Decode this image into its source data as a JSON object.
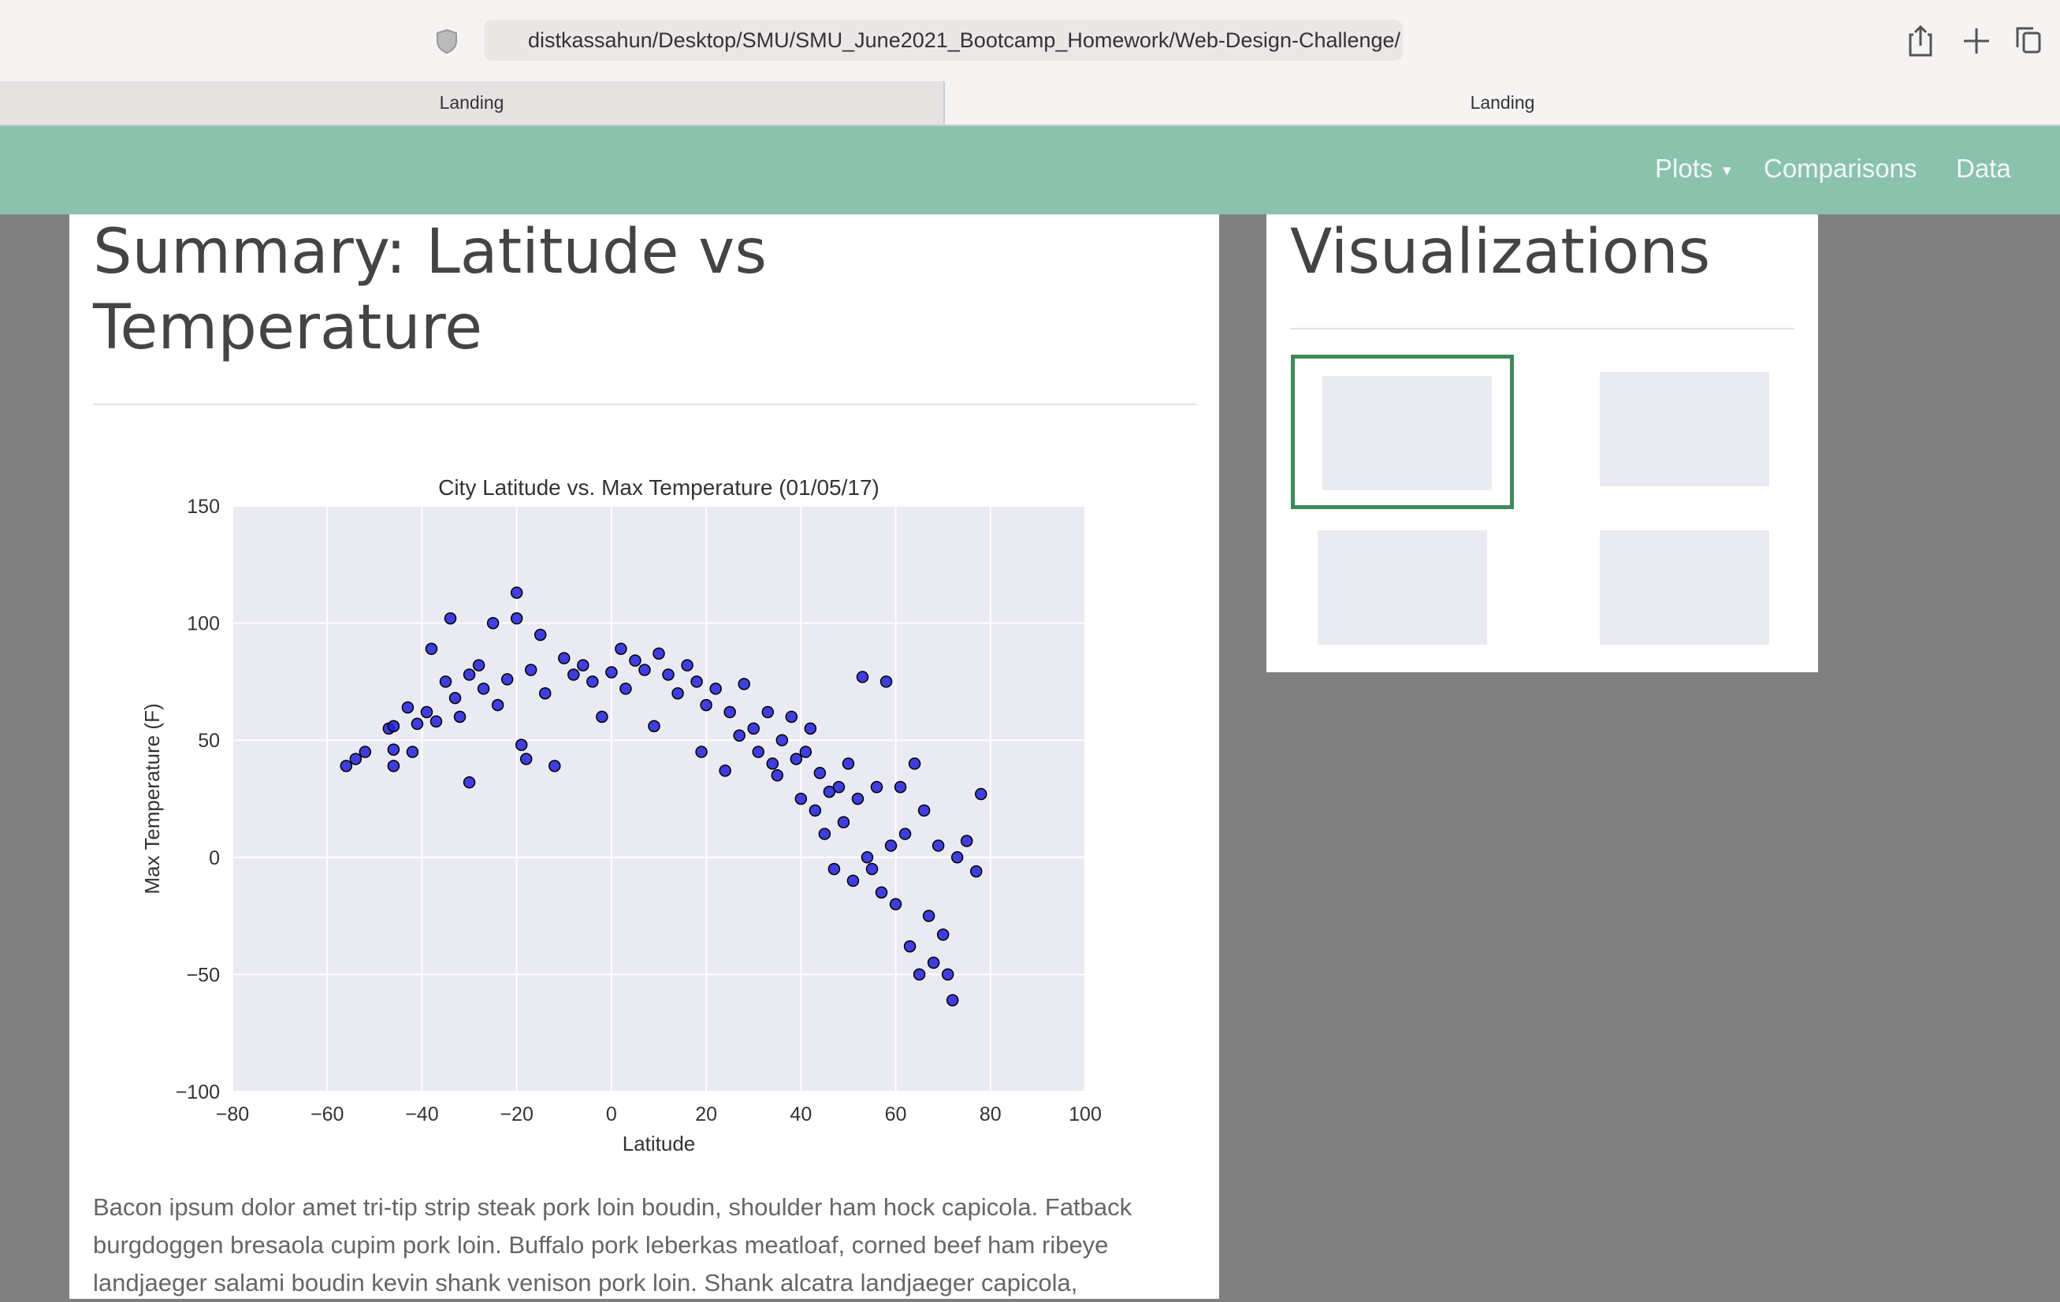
{
  "browser": {
    "url": "distkassahun/Desktop/SMU/SMU_June2021_Bootcamp_Homework/Web-Design-Challenge/",
    "tabs": [
      "Landing",
      "Landing"
    ]
  },
  "nav": {
    "items": [
      "Plots",
      "Comparisons",
      "Data"
    ]
  },
  "summary": {
    "title": "Summary: Latitude vs Temperature",
    "chart": {
      "type": "scatter",
      "title": "City Latitude vs. Max Temperature (01/05/17)",
      "x_label": "Latitude",
      "y_label": "Max Temperature (F)",
      "color": "#2020d8",
      "grid": true,
      "xlim": [
        -80,
        100
      ],
      "ylim": [
        -100,
        150
      ],
      "xticks": [
        {
          "value": -80,
          "label": "−80"
        },
        {
          "value": -60,
          "label": "−60"
        },
        {
          "value": -40,
          "label": "−40"
        },
        {
          "value": -20,
          "label": "−20"
        },
        0,
        20,
        40,
        60,
        80,
        100
      ],
      "yticks": [
        {
          "value": -100,
          "label": "−100"
        },
        {
          "value": -50,
          "label": "−50"
        },
        0,
        50,
        100,
        150
      ],
      "x": [
        -56,
        -54,
        -52,
        -47,
        -46,
        -46,
        -46,
        -43,
        -42,
        -41,
        -39,
        -38,
        -37,
        -35,
        -34,
        -33,
        -32,
        -30,
        -30,
        -28,
        -27,
        -25,
        -24,
        -22,
        -20,
        -20,
        -19,
        -18,
        -17,
        -15,
        -14,
        -12,
        -10,
        -8,
        -6,
        -4,
        -2,
        0,
        2,
        3,
        5,
        7,
        9,
        10,
        12,
        14,
        16,
        18,
        19,
        20,
        22,
        24,
        25,
        27,
        28,
        30,
        31,
        33,
        34,
        35,
        36,
        38,
        39,
        40,
        41,
        42,
        43,
        44,
        45,
        46,
        47,
        48,
        49,
        50,
        51,
        52,
        53,
        54,
        55,
        56,
        57,
        58,
        59,
        60,
        61,
        62,
        63,
        64,
        65,
        66,
        67,
        68,
        69,
        70,
        71,
        72,
        73,
        75,
        77,
        78
      ],
      "values": [
        39,
        42,
        45,
        55,
        56,
        46,
        39,
        64,
        45,
        57,
        62,
        89,
        58,
        75,
        102,
        68,
        60,
        32,
        78,
        82,
        72,
        100,
        65,
        76,
        113,
        102,
        48,
        42,
        80,
        95,
        70,
        39,
        85,
        78,
        82,
        75,
        60,
        79,
        89,
        72,
        84,
        80,
        56,
        87,
        78,
        70,
        82,
        75,
        45,
        65,
        72,
        37,
        62,
        52,
        74,
        55,
        45,
        62,
        40,
        35,
        50,
        60,
        42,
        25,
        45,
        55,
        20,
        36,
        10,
        28,
        -5,
        30,
        15,
        40,
        -10,
        25,
        77,
        0,
        -5,
        30,
        -15,
        75,
        5,
        -20,
        30,
        10,
        -38,
        40,
        -50,
        20,
        -25,
        -45,
        5,
        -33,
        -50,
        -61,
        0,
        7,
        -6,
        27
      ]
    },
    "paragraph": "Bacon ipsum dolor amet tri-tip strip steak pork loin boudin, shoulder ham hock capicola. Fatback burgdoggen bresaola cupim pork loin. Buffalo pork leberkas meatloaf, corned beef ham ribeye landjaeger salami boudin kevin shank venison pork loin. Shank alcatra landjaeger capicola,"
  },
  "visualizations": {
    "title": "Visualizations"
  }
}
